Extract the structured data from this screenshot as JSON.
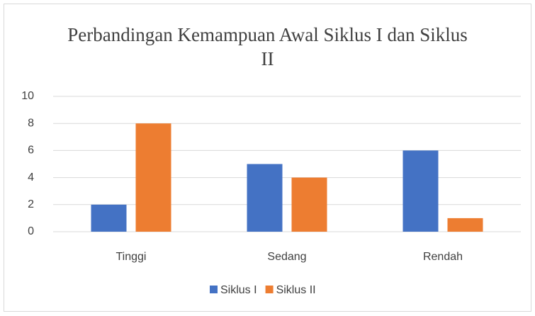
{
  "chart_data": {
    "type": "bar",
    "title": "Perbandingan Kemampuan Awal Siklus I dan Siklus II",
    "categories": [
      "Tinggi",
      "Sedang",
      "Rendah"
    ],
    "series": [
      {
        "name": "Siklus I",
        "color": "#4472c4",
        "values": [
          2,
          5,
          6
        ]
      },
      {
        "name": "Siklus II",
        "color": "#ed7d31",
        "values": [
          8,
          4,
          1
        ]
      }
    ],
    "ylim": [
      0,
      10
    ],
    "yticks": [
      0,
      2,
      4,
      6,
      8,
      10
    ],
    "grid": true,
    "legend": "bottom"
  }
}
